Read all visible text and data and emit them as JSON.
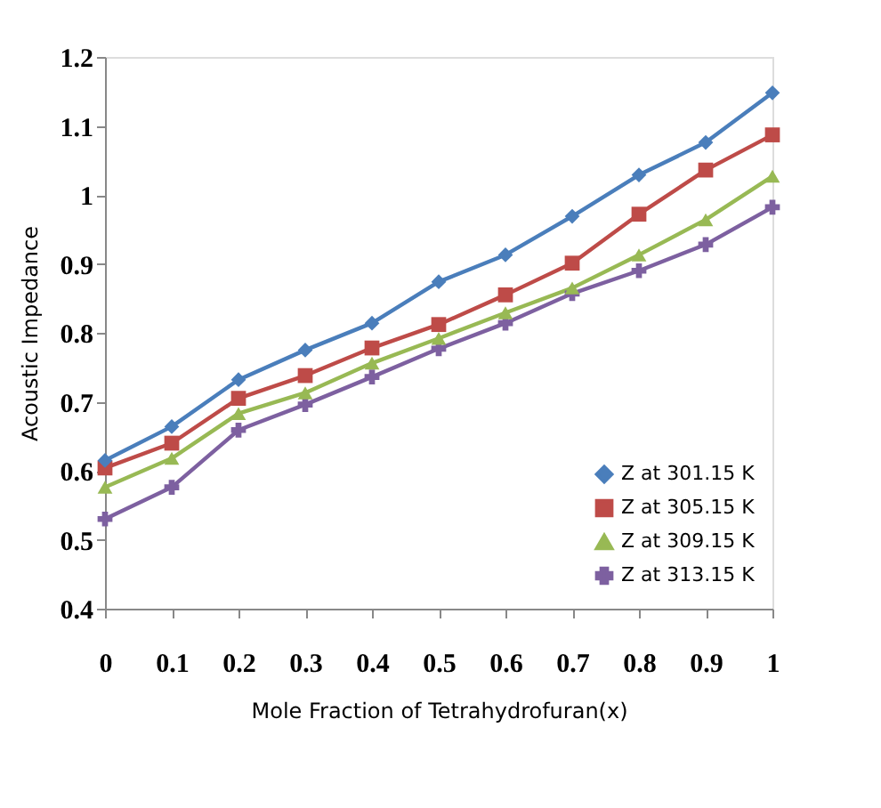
{
  "chart_data": {
    "type": "line",
    "xlabel": "Mole Fraction of Tetrahydrofuran(x)",
    "ylabel": "Acoustic Impedance",
    "categories": [
      "0",
      "0.1",
      "0.2",
      "0.3",
      "0.4",
      "0.5",
      "0.6",
      "0.7",
      "0.8",
      "0.9",
      "1"
    ],
    "ylim": [
      0.4,
      1.2
    ],
    "yticks": [
      0.4,
      0.5,
      0.6,
      0.7,
      0.8,
      0.9,
      {
        "value": 1,
        "label": "1"
      },
      1.1,
      1.2
    ],
    "grid": false,
    "legend": "bottom right",
    "line_style": "solid",
    "series": [
      {
        "name": "Z at 301.15 K",
        "color": "#4a7ebb",
        "marker": "diamond",
        "values": [
          0.615,
          0.664,
          0.732,
          0.775,
          0.814,
          0.874,
          0.913,
          0.969,
          1.029,
          1.076,
          1.148
        ]
      },
      {
        "name": "Z at 305.15 K",
        "color": "#be4b48",
        "marker": "square",
        "values": [
          0.604,
          0.64,
          0.705,
          0.738,
          0.778,
          0.812,
          0.855,
          0.901,
          0.972,
          1.036,
          1.087
        ]
      },
      {
        "name": "Z at 309.15 K",
        "color": "#98b954",
        "marker": "triangle",
        "values": [
          0.576,
          0.618,
          0.683,
          0.713,
          0.756,
          0.792,
          0.829,
          0.865,
          0.913,
          0.964,
          1.027
        ]
      },
      {
        "name": "Z at 313.15 K",
        "color": "#7d60a0",
        "marker": "cross",
        "values": [
          0.53,
          0.576,
          0.659,
          0.696,
          0.736,
          0.777,
          0.814,
          0.857,
          0.89,
          0.928,
          0.982
        ]
      }
    ]
  }
}
